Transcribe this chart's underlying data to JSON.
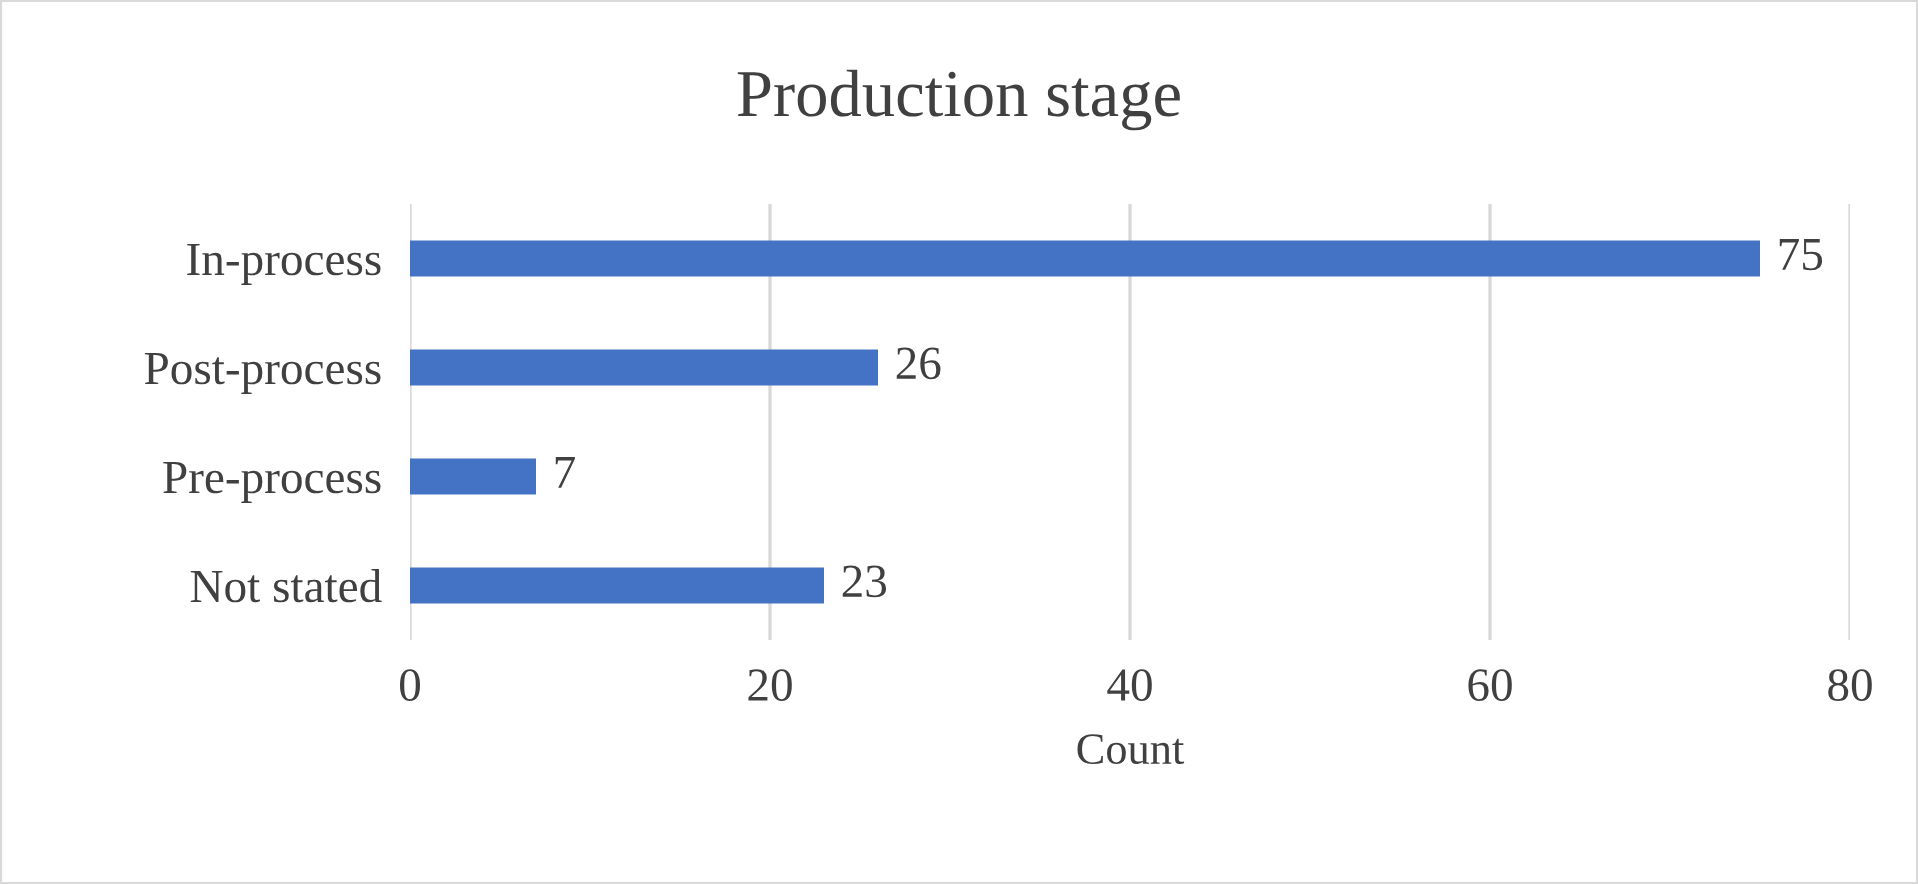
{
  "chart_data": {
    "type": "bar",
    "orientation": "horizontal",
    "title": "Production stage",
    "xlabel": "Count",
    "categories": [
      "In-process",
      "Post-process",
      "Pre-process",
      "Not stated"
    ],
    "values": [
      75,
      26,
      7,
      23
    ],
    "color": "#4472c4",
    "xlim": [
      0,
      80
    ],
    "xticks": [
      0,
      20,
      40,
      60,
      80
    ],
    "grid": "x",
    "data_labels": true
  }
}
